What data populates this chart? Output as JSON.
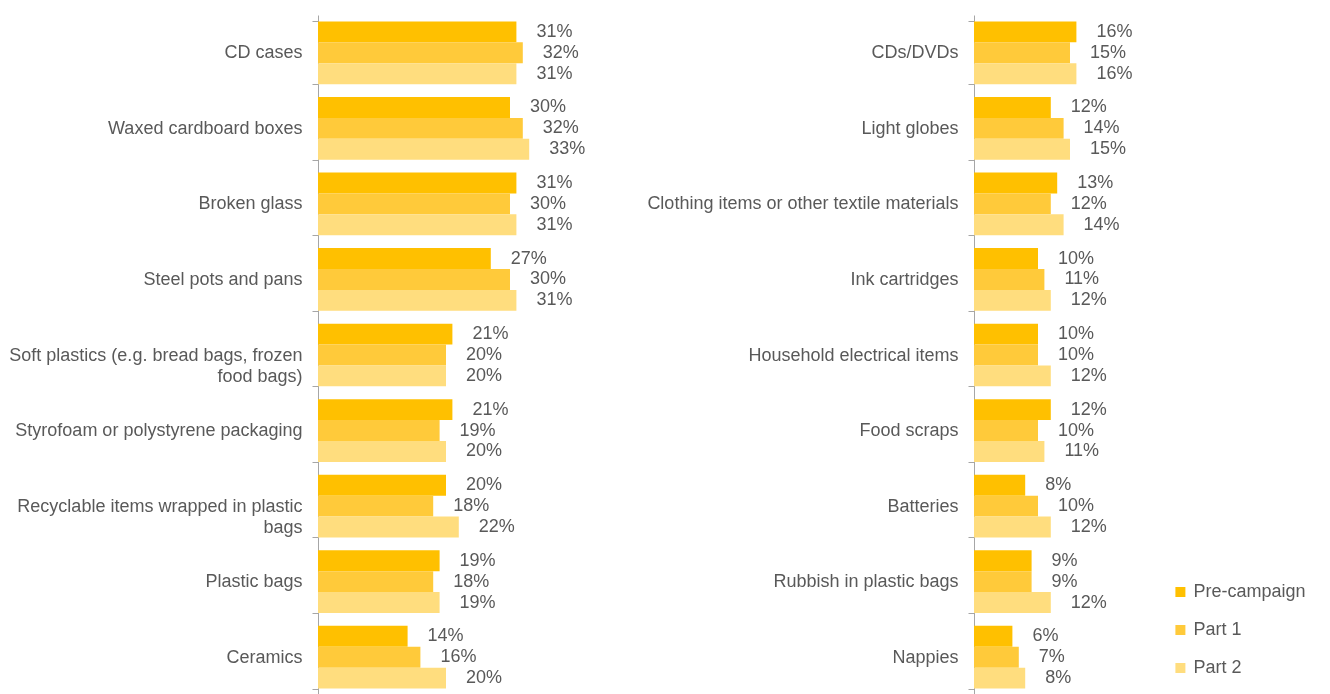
{
  "chart_data": [
    {
      "type": "bar",
      "orientation": "horizontal",
      "legend": false,
      "categories": [
        "CD cases",
        "Waxed cardboard boxes",
        "Broken glass",
        "Steel pots and pans",
        "Soft plastics (e.g. bread bags, frozen food bags)",
        "Styrofoam or polystyrene packaging",
        "Recyclable items wrapped in plastic bags",
        "Plastic bags",
        "Ceramics"
      ],
      "series": [
        {
          "color": "#ffc000",
          "values": [
            31,
            30,
            31,
            27,
            21,
            21,
            20,
            19,
            14
          ],
          "value_labels": [
            "31%",
            "30%",
            "31%",
            "27%",
            "21%",
            "21%",
            "20%",
            "19%",
            "14%"
          ]
        },
        {
          "color": "#ffca3a",
          "values": [
            32,
            32,
            30,
            30,
            20,
            19,
            18,
            18,
            16
          ],
          "value_labels": [
            "32%",
            "32%",
            "30%",
            "30%",
            "20%",
            "19%",
            "18%",
            "18%",
            "16%"
          ]
        },
        {
          "color": "#ffdd7e",
          "values": [
            31,
            33,
            31,
            31,
            20,
            20,
            22,
            19,
            20
          ],
          "value_labels": [
            "31%",
            "33%",
            "31%",
            "31%",
            "20%",
            "20%",
            "22%",
            "19%",
            "20%"
          ]
        }
      ]
    },
    {
      "type": "bar",
      "orientation": "horizontal",
      "legend": "bottom right",
      "categories": [
        "CDs/DVDs",
        "Light globes",
        "Clothing items or other textile materials",
        "Ink cartridges",
        "Household electrical items",
        "Food scraps",
        "Batteries",
        "Rubbish in plastic bags",
        "Nappies"
      ],
      "series": [
        {
          "name": "Pre-campaign",
          "color": "#ffc000",
          "values": [
            16,
            12,
            13,
            10,
            10,
            12,
            8,
            9,
            6
          ],
          "value_labels": [
            "16%",
            "12%",
            "13%",
            "10%",
            "10%",
            "12%",
            "8%",
            "9%",
            "6%"
          ]
        },
        {
          "name": "Part 1",
          "color": "#ffca3a",
          "values": [
            15,
            14,
            12,
            11,
            10,
            10,
            10,
            9,
            7
          ],
          "value_labels": [
            "15%",
            "14%",
            "12%",
            "11%",
            "10%",
            "10%",
            "10%",
            "9%",
            "7%"
          ]
        },
        {
          "name": "Part 2",
          "color": "#ffdd7e",
          "values": [
            16,
            15,
            14,
            12,
            12,
            11,
            12,
            12,
            8
          ],
          "value_labels": [
            "16%",
            "15%",
            "14%",
            "12%",
            "12%",
            "11%",
            "12%",
            "12%",
            "8%"
          ]
        }
      ]
    }
  ]
}
